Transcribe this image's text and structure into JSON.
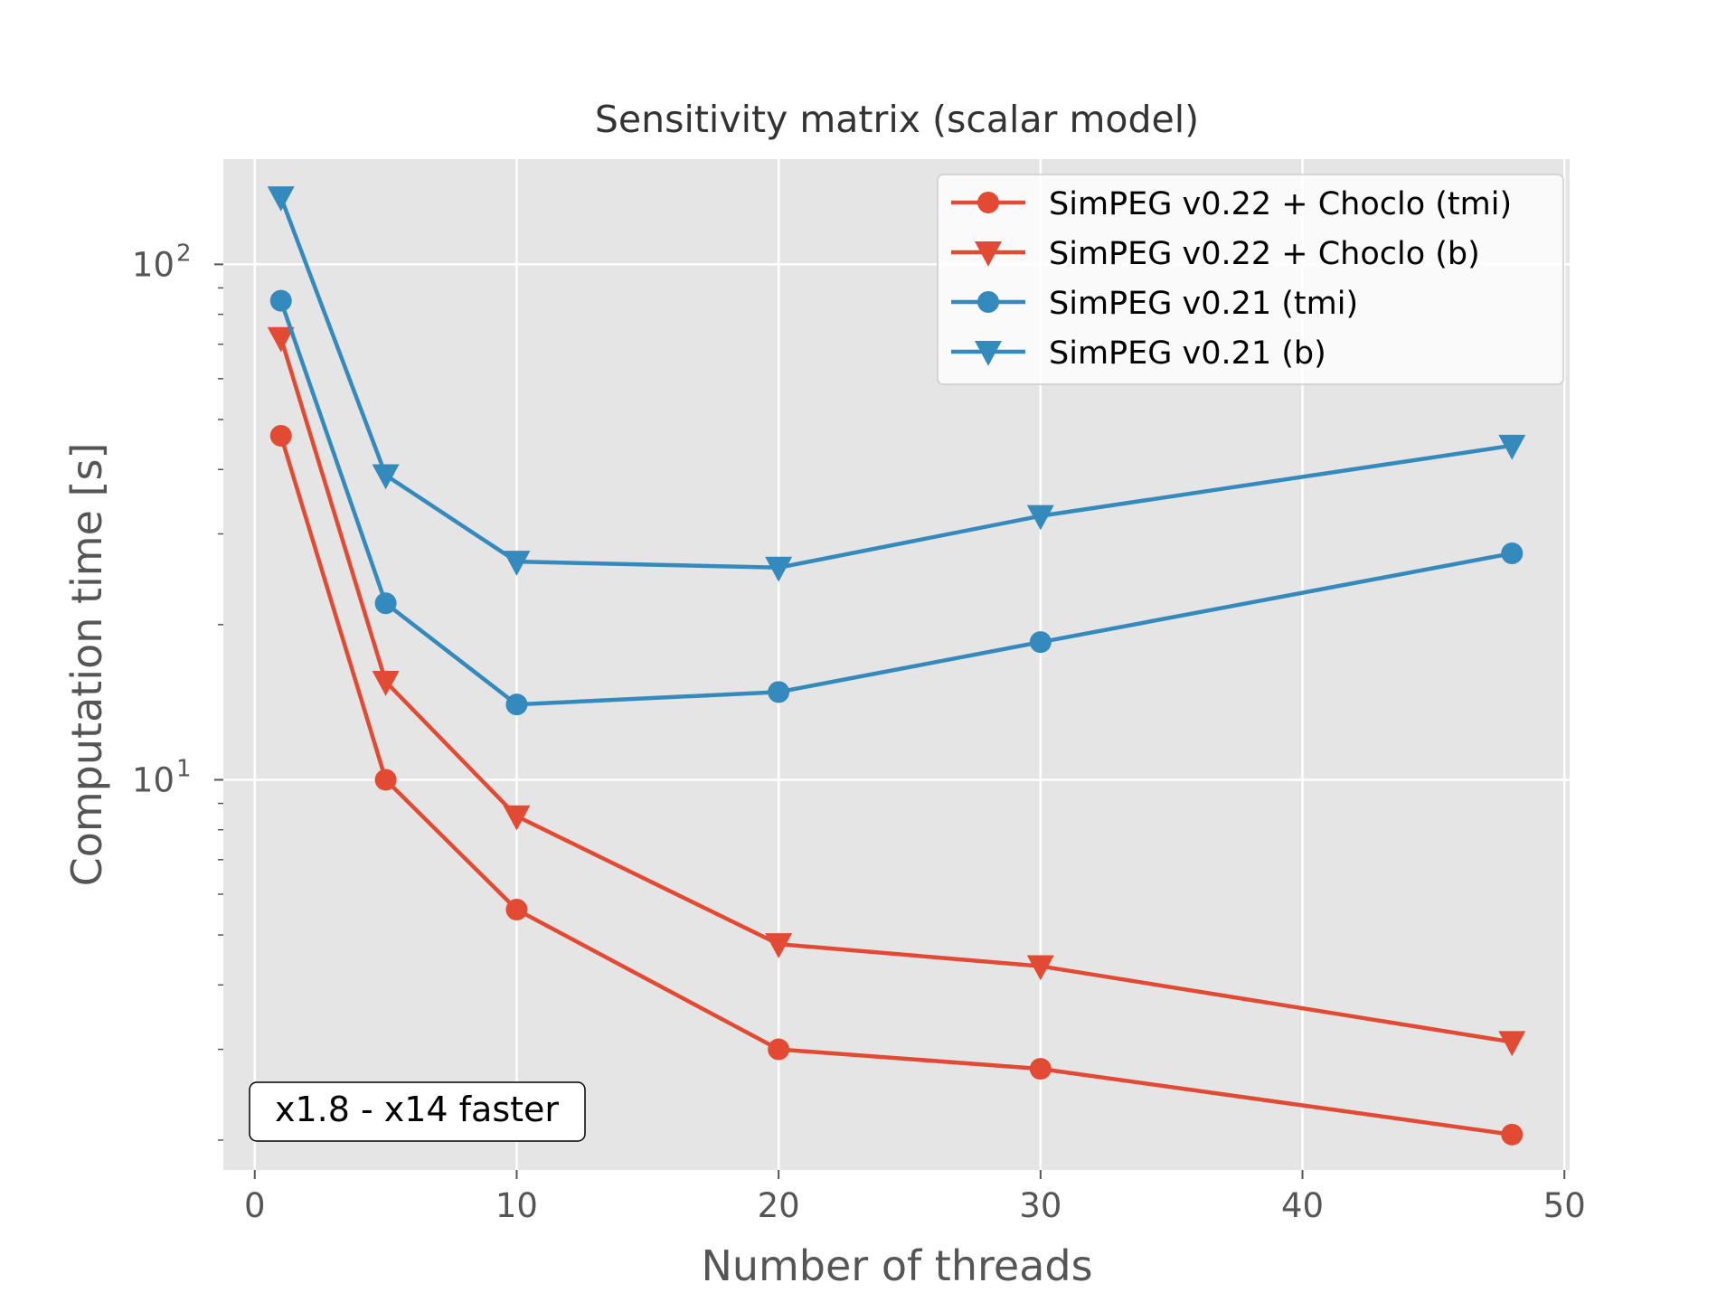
{
  "chart_data": {
    "type": "line",
    "title": "Sensitivity matrix (scalar model)",
    "xlabel": "Number of threads",
    "ylabel": "Computation time [s]",
    "xlim": [
      -1.2,
      50.2
    ],
    "ylim": [
      1.75,
      160
    ],
    "yscale": "log",
    "xticks": [
      0,
      10,
      20,
      30,
      40,
      50
    ],
    "xtick_labels": [
      "0",
      "10",
      "20",
      "30",
      "40",
      "50"
    ],
    "yticks": [
      {
        "value": 10,
        "base": "10",
        "exp": "1"
      },
      {
        "value": 100,
        "base": "10",
        "exp": "2"
      }
    ],
    "grid": true,
    "legend_position": "top-right",
    "annotation": "x1.8 - x14 faster",
    "x": [
      1,
      5,
      10,
      20,
      30,
      48
    ],
    "series": [
      {
        "name": "SimPEG v0.22 + Choclo (tmi)",
        "color": "#E24A33",
        "marker": "circle",
        "values": [
          46.5,
          10.0,
          5.6,
          3.0,
          2.75,
          2.05
        ]
      },
      {
        "name": "SimPEG v0.22 + Choclo (b)",
        "color": "#E24A33",
        "marker": "triangle-down",
        "values": [
          72,
          15.5,
          8.5,
          4.8,
          4.35,
          3.1
        ]
      },
      {
        "name": "SimPEG v0.21 (tmi)",
        "color": "#348ABD",
        "marker": "circle",
        "values": [
          85,
          22,
          14,
          14.8,
          18.5,
          27.5
        ]
      },
      {
        "name": "SimPEG v0.21 (b)",
        "color": "#348ABD",
        "marker": "triangle-down",
        "values": [
          135,
          39,
          26.5,
          25.8,
          32.5,
          44.5
        ]
      }
    ]
  }
}
